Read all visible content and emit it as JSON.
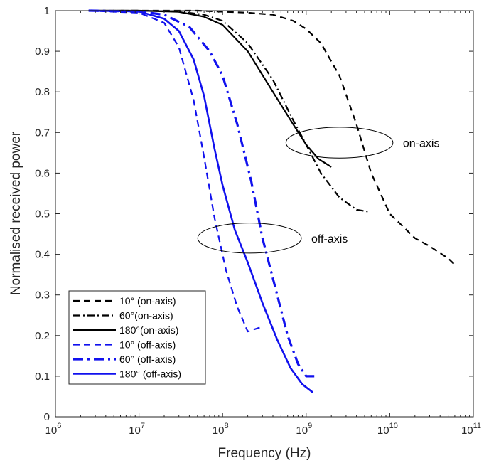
{
  "chart_data": {
    "type": "line",
    "xlabel": "Frequency (Hz)",
    "ylabel": "Normalised received power",
    "x_scale": "log",
    "xlim": [
      1000000,
      100000000000
    ],
    "ylim": [
      0,
      1
    ],
    "x_ticks": [
      {
        "value": 1000000,
        "base": "10",
        "exp": "6"
      },
      {
        "value": 10000000,
        "base": "10",
        "exp": "7"
      },
      {
        "value": 100000000,
        "base": "10",
        "exp": "8"
      },
      {
        "value": 1000000000,
        "base": "10",
        "exp": "9"
      },
      {
        "value": 10000000000,
        "base": "10",
        "exp": "10"
      },
      {
        "value": 100000000000,
        "base": "10",
        "exp": "11"
      }
    ],
    "y_ticks": [
      "0",
      "0.1",
      "0.2",
      "0.3",
      "0.4",
      "0.5",
      "0.6",
      "0.7",
      "0.8",
      "0.9",
      "1"
    ],
    "grid": false,
    "legend_position": "bottom-left",
    "series": [
      {
        "name": "10° (on-axis)",
        "color": "#000000",
        "style": "dashed",
        "width": 2.2,
        "x": [
          2500000.0,
          10000000.0,
          50000000.0,
          200000000.0,
          400000000.0,
          700000000.0,
          1000000000.0,
          1500000000.0,
          2500000000.0,
          4000000000.0,
          6000000000.0,
          10000000000.0,
          20000000000.0,
          30000000000.0,
          50000000000.0,
          63000000000.0
        ],
        "y": [
          1.0,
          1.0,
          1.0,
          0.995,
          0.99,
          0.975,
          0.955,
          0.92,
          0.84,
          0.72,
          0.6,
          0.5,
          0.44,
          0.42,
          0.39,
          0.37
        ]
      },
      {
        "name": "60°(on-axis)",
        "color": "#000000",
        "style": "dashdot",
        "width": 2.2,
        "x": [
          2500000.0,
          10000000.0,
          30000000.0,
          60000000.0,
          100000000.0,
          200000000.0,
          400000000.0,
          700000000.0,
          1000000000.0,
          1500000000.0,
          2500000000.0,
          4000000000.0,
          5600000000.0
        ],
        "y": [
          1.0,
          1.0,
          0.998,
          0.99,
          0.975,
          0.92,
          0.83,
          0.73,
          0.67,
          0.6,
          0.54,
          0.51,
          0.505
        ]
      },
      {
        "name": "180°(on-axis)",
        "color": "#000000",
        "style": "solid",
        "width": 2.2,
        "x": [
          2500000.0,
          10000000.0,
          30000000.0,
          60000000.0,
          100000000.0,
          200000000.0,
          400000000.0,
          700000000.0,
          1000000000.0,
          1400000000.0,
          2000000000.0
        ],
        "y": [
          1.0,
          1.0,
          0.997,
          0.985,
          0.965,
          0.9,
          0.8,
          0.72,
          0.67,
          0.635,
          0.615
        ]
      },
      {
        "name": "10° (off-axis)",
        "color": "#1111ee",
        "style": "dashed",
        "width": 2.2,
        "x": [
          2500000.0,
          10000000.0,
          20000000.0,
          30000000.0,
          45000000.0,
          60000000.0,
          80000000.0,
          110000000.0,
          150000000.0,
          200000000.0,
          280000000.0
        ],
        "y": [
          1.0,
          0.995,
          0.97,
          0.91,
          0.78,
          0.64,
          0.49,
          0.36,
          0.27,
          0.21,
          0.22
        ]
      },
      {
        "name": "60° (off-axis)",
        "color": "#1111ee",
        "style": "dashdot-bold",
        "width": 3.2,
        "x": [
          2500000.0,
          10000000.0,
          20000000.0,
          40000000.0,
          70000000.0,
          100000000.0,
          150000000.0,
          220000000.0,
          300000000.0,
          450000000.0,
          600000000.0,
          800000000.0,
          1000000000.0,
          1250000000.0
        ],
        "y": [
          1.0,
          0.998,
          0.99,
          0.96,
          0.9,
          0.84,
          0.72,
          0.58,
          0.44,
          0.3,
          0.2,
          0.13,
          0.1,
          0.1
        ]
      },
      {
        "name": "180° (off-axis)",
        "color": "#1111ee",
        "style": "solid",
        "width": 2.6,
        "x": [
          2500000.0,
          10000000.0,
          20000000.0,
          30000000.0,
          45000000.0,
          60000000.0,
          80000000.0,
          100000000.0,
          140000000.0,
          200000000.0,
          300000000.0,
          450000000.0,
          650000000.0,
          900000000.0,
          1200000000.0
        ],
        "y": [
          1.0,
          0.998,
          0.98,
          0.95,
          0.88,
          0.79,
          0.66,
          0.57,
          0.46,
          0.38,
          0.28,
          0.19,
          0.12,
          0.08,
          0.06
        ]
      }
    ],
    "annotations": [
      {
        "text": "on-axis",
        "cx": 2500000000.0,
        "cy": 0.675,
        "rx_dec": 0.64,
        "ry": 0.038
      },
      {
        "text": "off-axis",
        "cx": 210000000.0,
        "cy": 0.44,
        "rx_dec": 0.62,
        "ry": 0.037
      }
    ]
  }
}
